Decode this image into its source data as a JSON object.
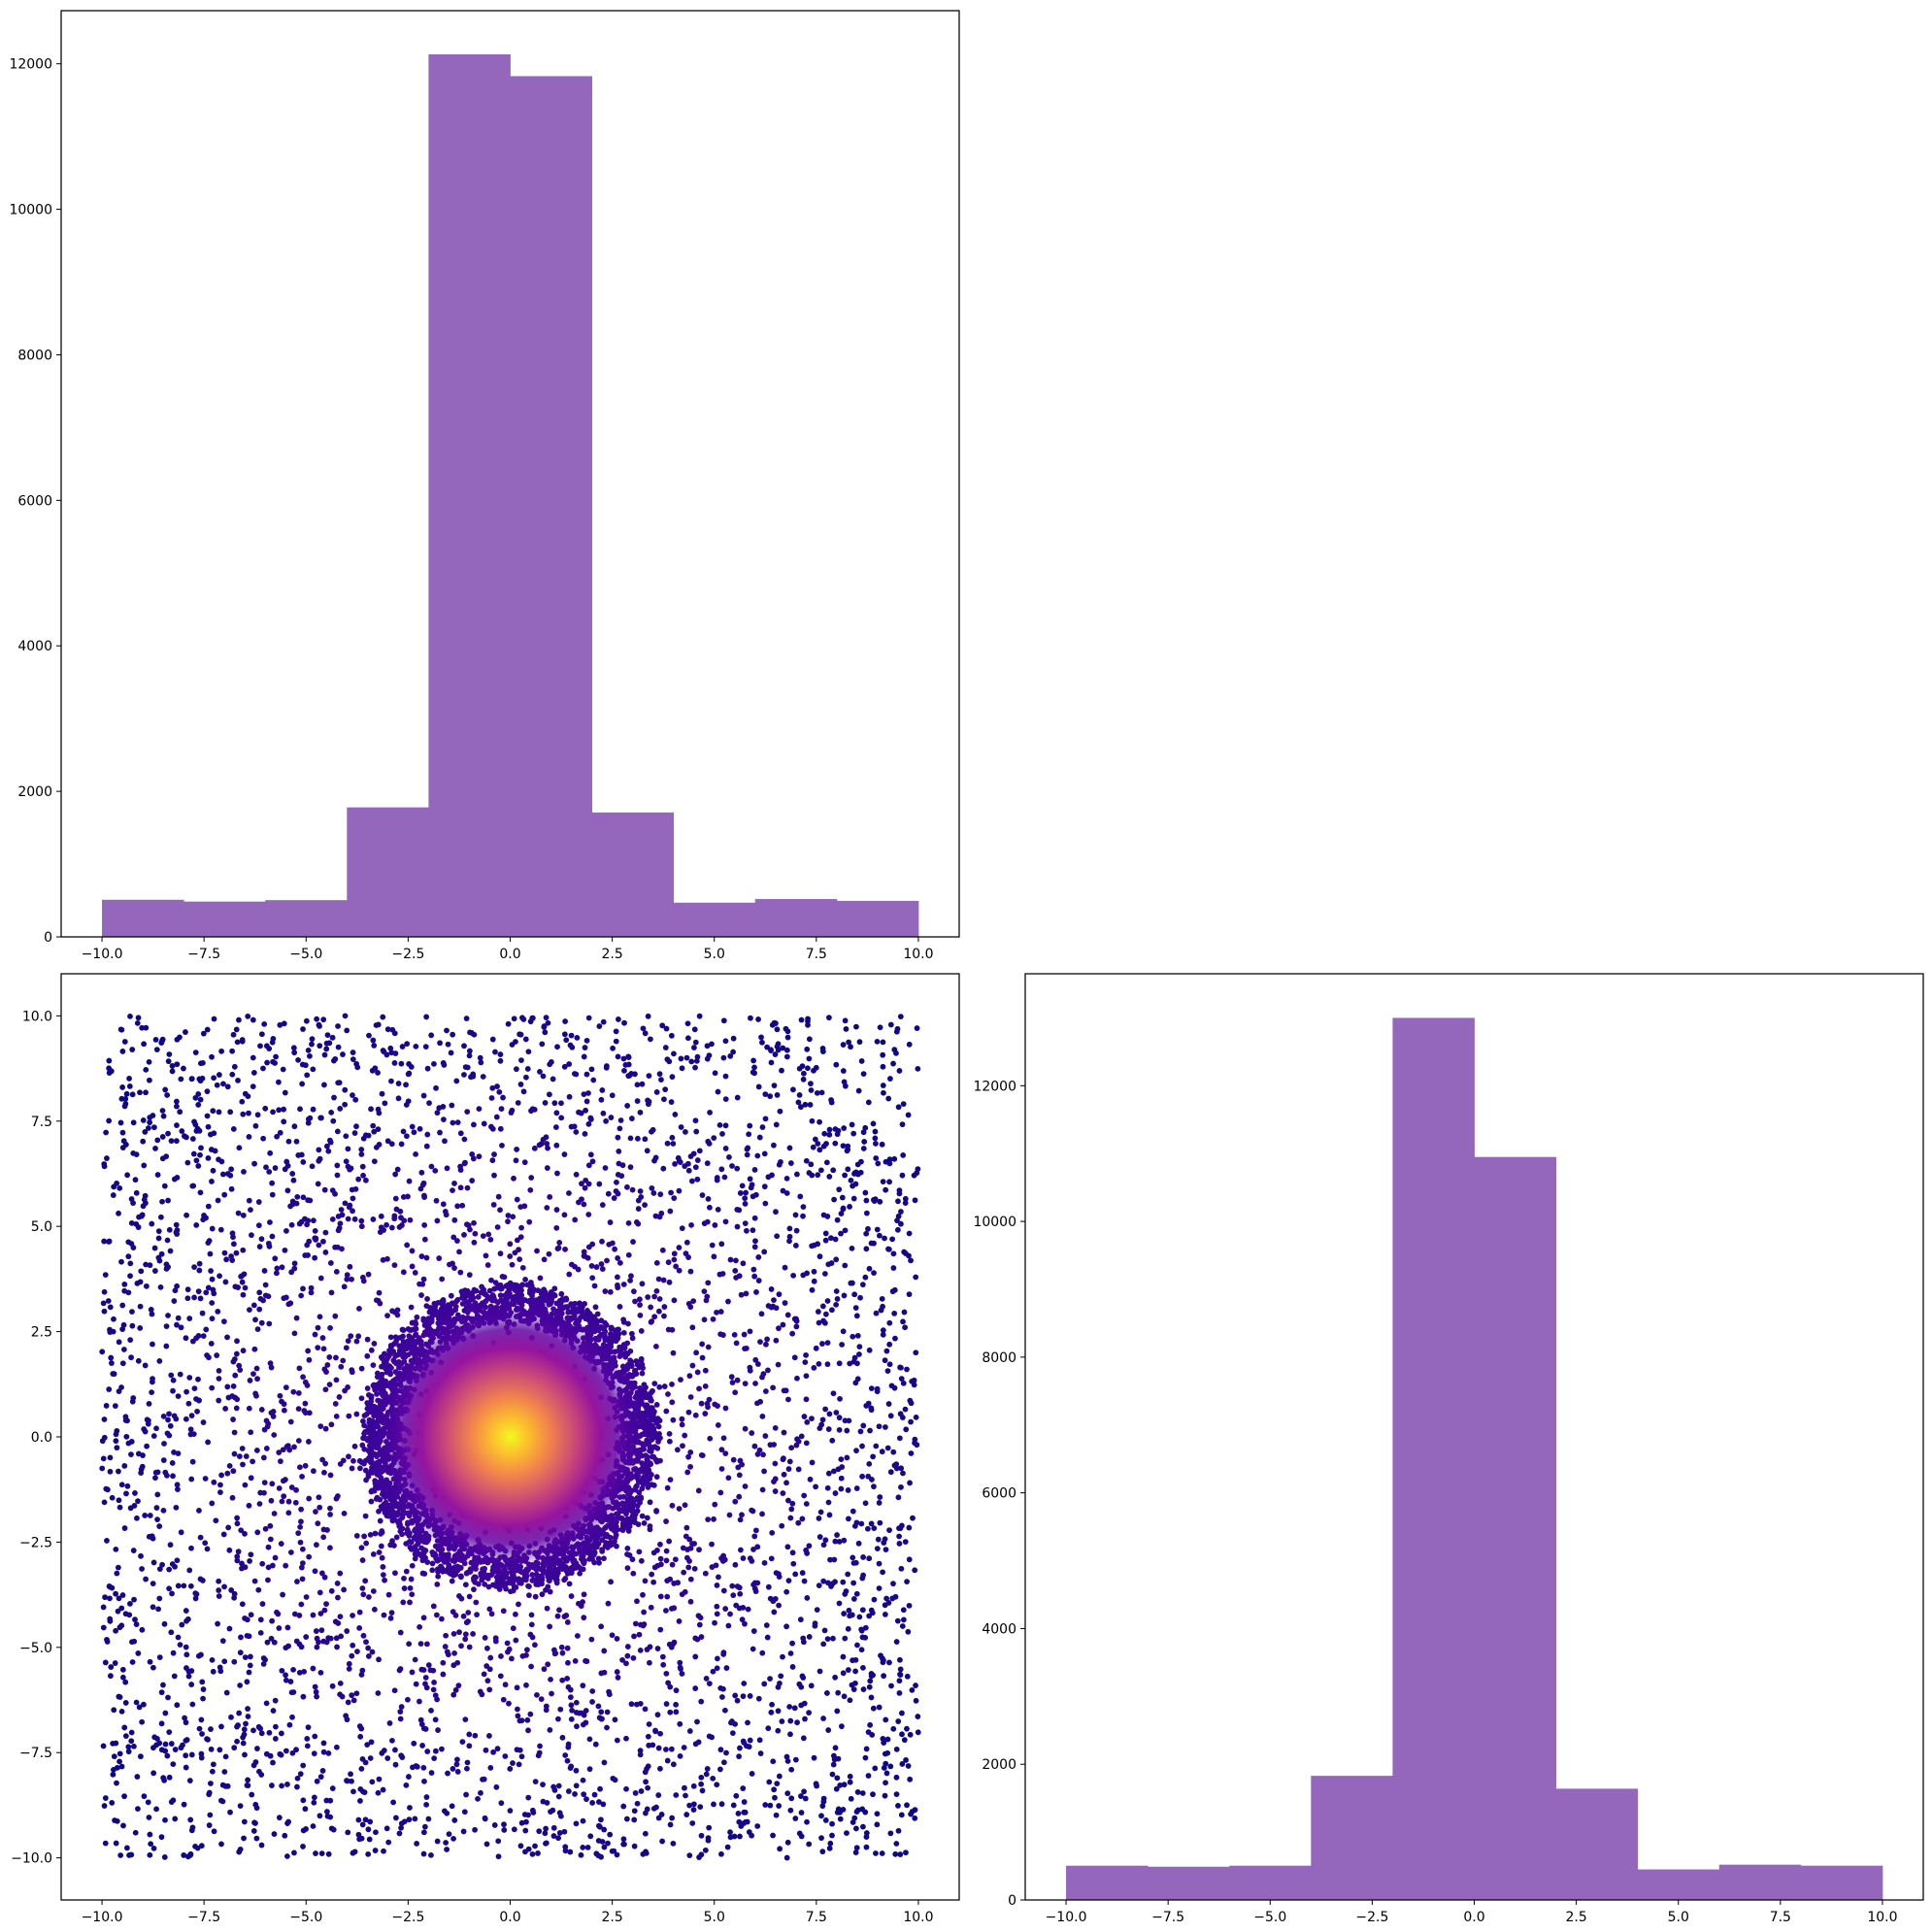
{
  "colors": {
    "bar_fill": "#9467bd",
    "axes_edge": "#000000",
    "background": "#ffffff",
    "scatter_colormap": "plasma"
  },
  "chart_data": [
    {
      "id": "hist_x",
      "type": "bar",
      "subtype": "histogram",
      "bin_edges": [
        -10,
        -8,
        -6,
        -4,
        -2,
        0,
        2,
        4,
        6,
        8,
        10
      ],
      "values": [
        510,
        485,
        505,
        1780,
        12130,
        11830,
        1710,
        470,
        520,
        495
      ],
      "xlim": [
        -11,
        11
      ],
      "ylim": [
        0,
        12730
      ],
      "xticks": [
        -10.0,
        -7.5,
        -5.0,
        -2.5,
        0.0,
        2.5,
        5.0,
        7.5,
        10.0
      ],
      "xtick_labels": [
        "−10.0",
        "−7.5",
        "−5.0",
        "−2.5",
        "0.0",
        "2.5",
        "5.0",
        "7.5",
        "10.0"
      ],
      "yticks": [
        0,
        2000,
        4000,
        6000,
        8000,
        10000,
        12000
      ],
      "ytick_labels": [
        "0",
        "2000",
        "4000",
        "6000",
        "8000",
        "10000",
        "12000"
      ],
      "grid": false
    },
    {
      "id": "scatter_xy",
      "type": "scatter",
      "description": "uniform background points over [-10,10]x[-10,10] plus a dense disc of radius ~3.6 centered at origin; color encodes density (plasma colormap, bright yellow at center)",
      "uniform_range": [
        -10,
        10
      ],
      "cluster_center": [
        0,
        0
      ],
      "cluster_radius": 3.6,
      "xlim": [
        -11,
        11
      ],
      "ylim": [
        -11,
        11
      ],
      "xticks": [
        -10.0,
        -7.5,
        -5.0,
        -2.5,
        0.0,
        2.5,
        5.0,
        7.5,
        10.0
      ],
      "xtick_labels": [
        "−10.0",
        "−7.5",
        "−5.0",
        "−2.5",
        "0.0",
        "2.5",
        "5.0",
        "7.5",
        "10.0"
      ],
      "yticks": [
        -10.0,
        -7.5,
        -5.0,
        -2.5,
        0.0,
        2.5,
        5.0,
        7.5,
        10.0
      ],
      "ytick_labels": [
        "−10.0",
        "−7.5",
        "−5.0",
        "−2.5",
        "0.0",
        "2.5",
        "5.0",
        "7.5",
        "10.0"
      ],
      "grid": false
    },
    {
      "id": "hist_y",
      "type": "bar",
      "subtype": "histogram",
      "bin_edges": [
        -10,
        -8,
        -6,
        -4,
        -2,
        0,
        2,
        4,
        6,
        8,
        10
      ],
      "values": [
        505,
        490,
        505,
        1830,
        13000,
        10950,
        1640,
        450,
        520,
        505
      ],
      "xlim": [
        -11,
        11
      ],
      "ylim": [
        0,
        13650
      ],
      "xticks": [
        -10.0,
        -7.5,
        -5.0,
        -2.5,
        0.0,
        2.5,
        5.0,
        7.5,
        10.0
      ],
      "xtick_labels": [
        "−10.0",
        "−7.5",
        "−5.0",
        "−2.5",
        "0.0",
        "2.5",
        "5.0",
        "7.5",
        "10.0"
      ],
      "yticks": [
        0,
        2000,
        4000,
        6000,
        8000,
        10000,
        12000
      ],
      "ytick_labels": [
        "0",
        "2000",
        "4000",
        "6000",
        "8000",
        "10000",
        "12000"
      ],
      "grid": false
    }
  ]
}
